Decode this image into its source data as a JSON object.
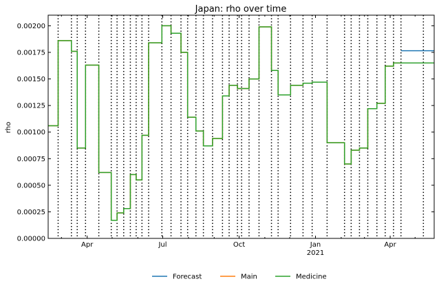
{
  "chart_data": {
    "type": "line",
    "title": "Japan: rho over time",
    "xlabel": "",
    "ylabel": "rho",
    "ylim": [
      0,
      0.0021
    ],
    "xlim": [
      "2020-02-14",
      "2021-05-24"
    ],
    "y_ticks": [
      {
        "value": 0,
        "label": "0.00000"
      },
      {
        "value": 0.00025,
        "label": "0.00025"
      },
      {
        "value": 0.0005,
        "label": "0.00050"
      },
      {
        "value": 0.00075,
        "label": "0.00075"
      },
      {
        "value": 0.001,
        "label": "0.00100"
      },
      {
        "value": 0.00125,
        "label": "0.00125"
      },
      {
        "value": 0.0015,
        "label": "0.00150"
      },
      {
        "value": 0.00175,
        "label": "0.00175"
      },
      {
        "value": 0.002,
        "label": "0.00200"
      }
    ],
    "x_ticks": [
      {
        "date": "2020-04-01",
        "label": "Apr",
        "sublabel": ""
      },
      {
        "date": "2020-07-01",
        "label": "Jul",
        "sublabel": ""
      },
      {
        "date": "2020-10-01",
        "label": "Oct",
        "sublabel": ""
      },
      {
        "date": "2021-01-01",
        "label": "Jan",
        "sublabel": "2021"
      },
      {
        "date": "2021-04-01",
        "label": "Apr",
        "sublabel": ""
      }
    ],
    "x_minor_ticks": [
      "2020-03-01",
      "2020-05-01",
      "2020-06-01",
      "2020-08-01",
      "2020-09-01",
      "2020-11-01",
      "2020-12-01",
      "2021-02-01",
      "2021-03-01",
      "2021-05-01"
    ],
    "change_points": [
      "2020-02-26",
      "2020-03-13",
      "2020-03-20",
      "2020-03-30",
      "2020-04-15",
      "2020-04-30",
      "2020-05-07",
      "2020-05-15",
      "2020-05-23",
      "2020-05-30",
      "2020-06-06",
      "2020-06-14",
      "2020-06-30",
      "2020-07-11",
      "2020-07-23",
      "2020-07-31",
      "2020-08-10",
      "2020-08-19",
      "2020-08-30",
      "2020-09-11",
      "2020-09-19",
      "2020-09-29",
      "2020-10-04",
      "2020-10-13",
      "2020-10-25",
      "2020-11-09",
      "2020-11-17",
      "2020-12-02",
      "2020-12-17",
      "2020-12-28",
      "2021-01-15",
      "2021-02-05",
      "2021-02-13",
      "2021-02-23",
      "2021-03-05",
      "2021-03-16",
      "2021-03-26",
      "2021-04-05",
      "2021-04-14",
      "2021-05-11"
    ],
    "forecast_start": "2021-04-14",
    "series": [
      {
        "name": "Forecast",
        "color": "#1f77b4",
        "x": [
          "2021-04-14",
          "2021-05-24"
        ],
        "y": [
          0.001765,
          0.001765
        ]
      },
      {
        "name": "Main",
        "color": "#ff7f0e",
        "x": [
          "2020-02-14",
          "2020-02-26",
          "2020-03-13",
          "2020-03-20",
          "2020-03-30",
          "2020-04-15",
          "2020-04-30",
          "2020-05-07",
          "2020-05-15",
          "2020-05-23",
          "2020-05-30",
          "2020-06-06",
          "2020-06-14",
          "2020-06-30",
          "2020-07-11",
          "2020-07-23",
          "2020-07-31",
          "2020-08-10",
          "2020-08-19",
          "2020-08-30",
          "2020-09-11",
          "2020-09-19",
          "2020-09-29",
          "2020-10-04",
          "2020-10-13",
          "2020-10-25",
          "2020-11-09",
          "2020-11-17",
          "2020-12-02",
          "2020-12-17",
          "2020-12-28",
          "2021-01-15",
          "2021-02-05",
          "2021-02-13",
          "2021-02-23",
          "2021-03-05",
          "2021-03-16",
          "2021-03-26",
          "2021-04-05",
          "2021-04-14"
        ],
        "y": [
          0.00106,
          0.00186,
          0.00176,
          0.00085,
          0.00163,
          0.00062,
          0.00017,
          0.00024,
          0.00028,
          0.0006,
          0.00055,
          0.00097,
          0.00184,
          0.002,
          0.00193,
          0.00175,
          0.00114,
          0.00101,
          0.00087,
          0.00094,
          0.00134,
          0.00144,
          0.00141,
          0.00141,
          0.0015,
          0.00199,
          0.00158,
          0.00135,
          0.00144,
          0.00146,
          0.00147,
          0.0009,
          0.0007,
          0.00083,
          0.00085,
          0.00122,
          0.00127,
          0.00162,
          0.00165,
          0.00165
        ]
      },
      {
        "name": "Medicine",
        "color": "#2ca02c",
        "x": [
          "2020-02-14",
          "2020-02-26",
          "2020-03-13",
          "2020-03-20",
          "2020-03-30",
          "2020-04-15",
          "2020-04-30",
          "2020-05-07",
          "2020-05-15",
          "2020-05-23",
          "2020-05-30",
          "2020-06-06",
          "2020-06-14",
          "2020-06-30",
          "2020-07-11",
          "2020-07-23",
          "2020-07-31",
          "2020-08-10",
          "2020-08-19",
          "2020-08-30",
          "2020-09-11",
          "2020-09-19",
          "2020-09-29",
          "2020-10-04",
          "2020-10-13",
          "2020-10-25",
          "2020-11-09",
          "2020-11-17",
          "2020-12-02",
          "2020-12-17",
          "2020-12-28",
          "2021-01-15",
          "2021-02-05",
          "2021-02-13",
          "2021-02-23",
          "2021-03-05",
          "2021-03-16",
          "2021-03-26",
          "2021-04-05",
          "2021-05-24"
        ],
        "y": [
          0.00106,
          0.00186,
          0.00176,
          0.00085,
          0.00163,
          0.00062,
          0.00017,
          0.00024,
          0.00028,
          0.0006,
          0.00055,
          0.00097,
          0.00184,
          0.002,
          0.00193,
          0.00175,
          0.00114,
          0.00101,
          0.00087,
          0.00094,
          0.00134,
          0.00144,
          0.00141,
          0.00141,
          0.0015,
          0.00199,
          0.00158,
          0.00135,
          0.00144,
          0.00146,
          0.00147,
          0.0009,
          0.0007,
          0.00083,
          0.00085,
          0.00122,
          0.00127,
          0.00162,
          0.00165,
          0.00165
        ]
      }
    ],
    "legend": {
      "placement": "bottom-center",
      "entries": [
        "Forecast",
        "Main",
        "Medicine"
      ]
    },
    "grid": false
  }
}
